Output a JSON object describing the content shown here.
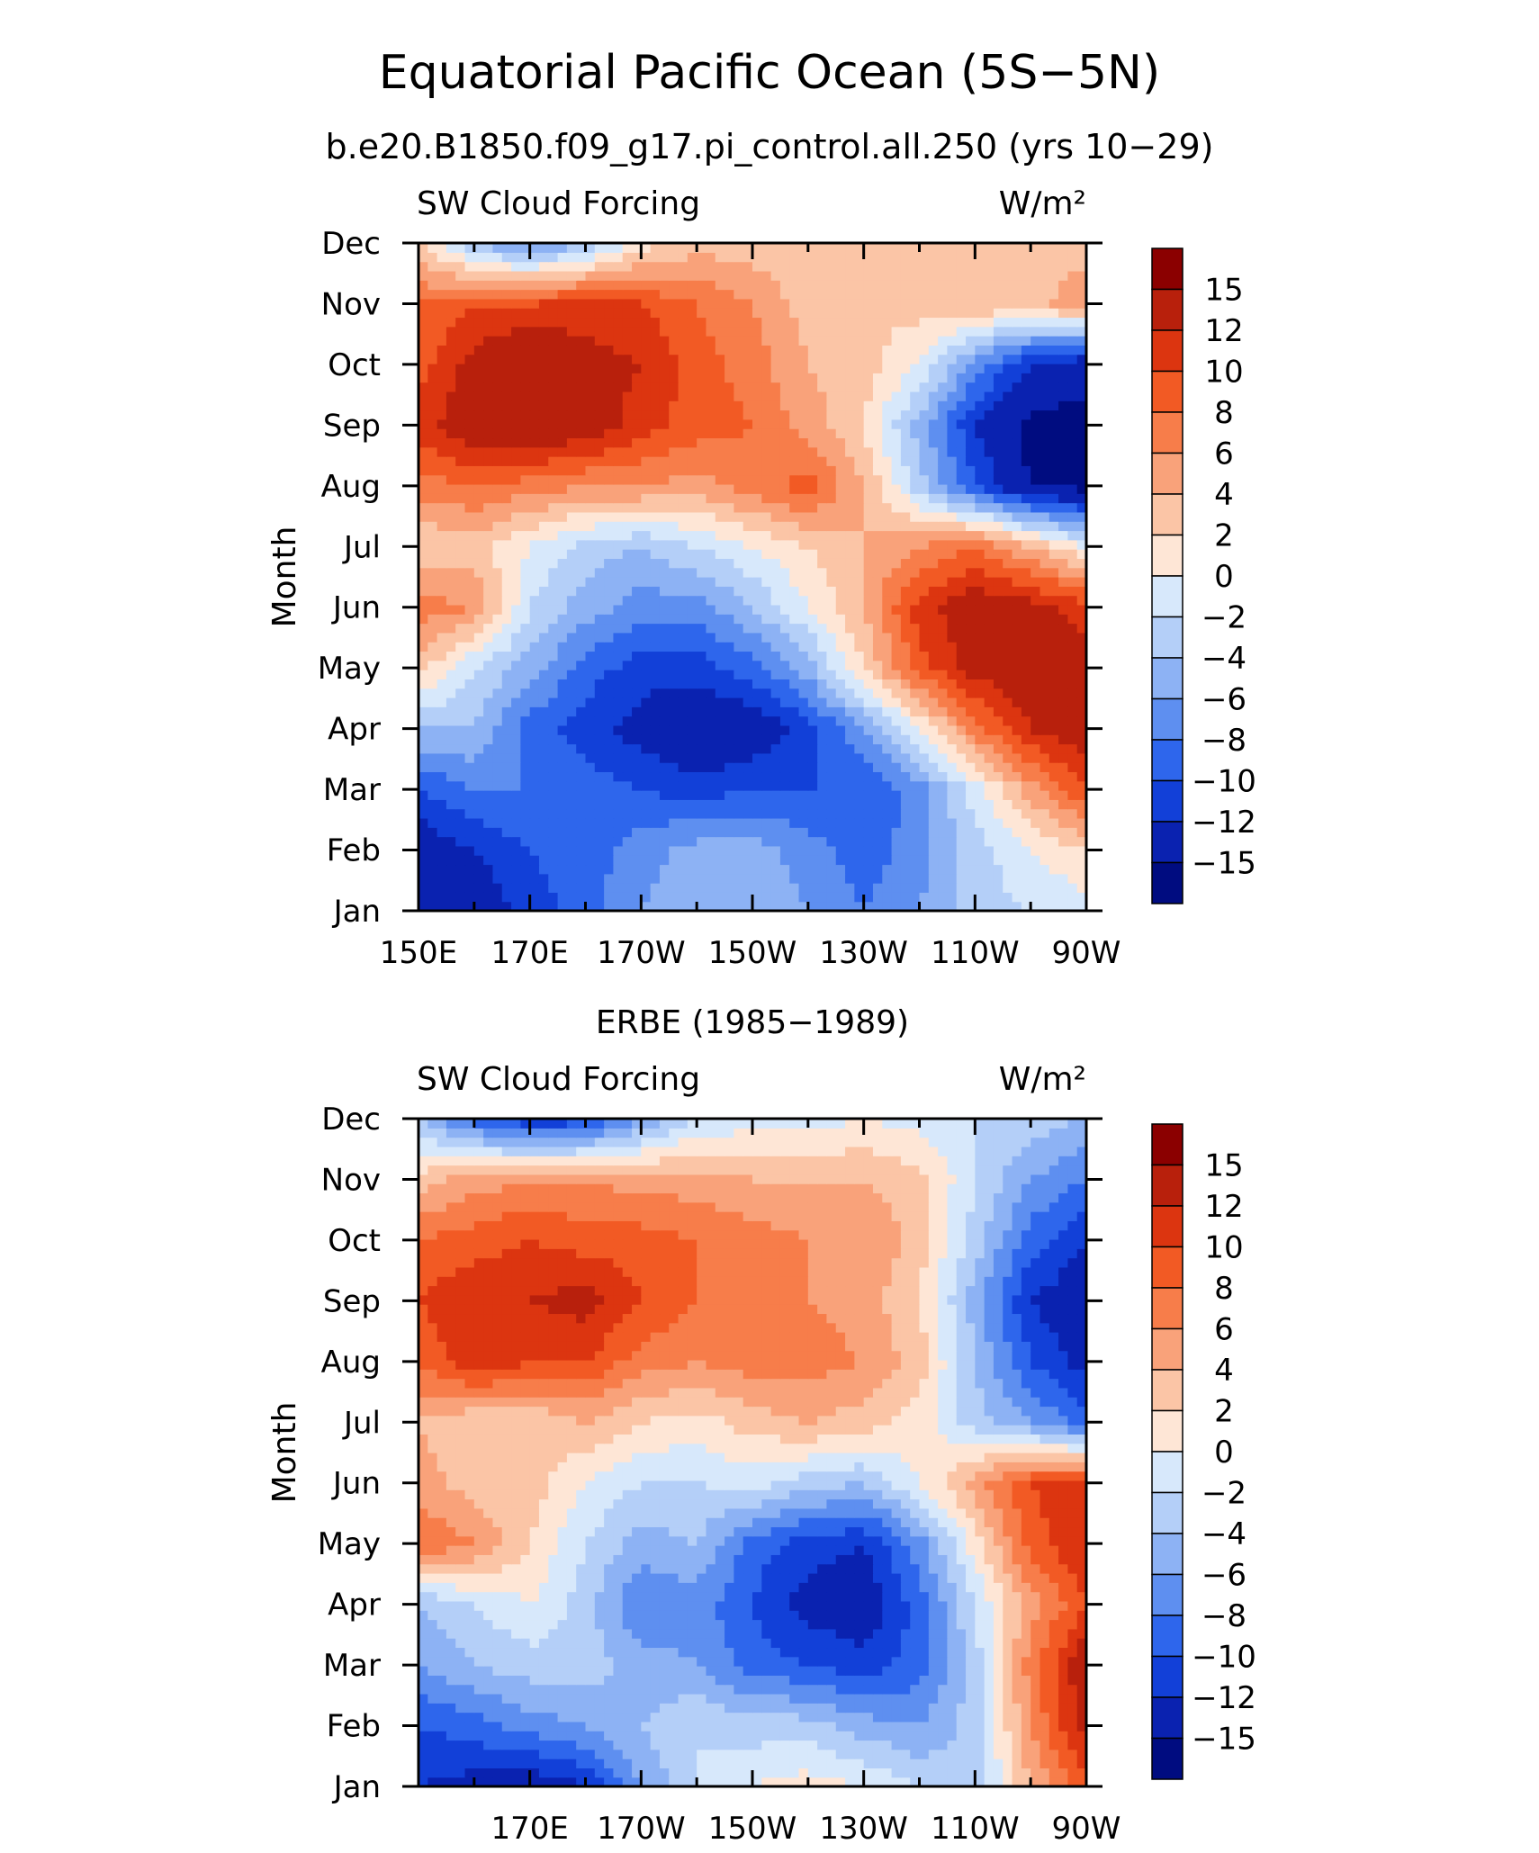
{
  "title": "Equatorial Pacific Ocean (5S−5N)",
  "subtitle": "b.e20.B1850.f09_g17.pi_control.all.250 (yrs 10−29)",
  "colorbar": {
    "labels": [
      "15",
      "12",
      "10",
      "8",
      "6",
      "4",
      "2",
      "0",
      "−2",
      "−4",
      "−6",
      "−8",
      "−10",
      "−12",
      "−15"
    ],
    "colors": [
      "#8b0000",
      "#b8200c",
      "#dc3510",
      "#f25a24",
      "#f77d4a",
      "#f9a27a",
      "#fbc5a6",
      "#fee6d6",
      "#d7e8fb",
      "#b4cff8",
      "#8db2f4",
      "#5e8ff0",
      "#2e66ec",
      "#1240d8",
      "#0a22b0",
      "#000c80"
    ]
  },
  "chart_data": [
    {
      "type": "heatmap",
      "left_label": "SW Cloud Forcing",
      "right_label": "W/m²",
      "ylabel": "Month",
      "xticklabels": [
        "150E",
        "170E",
        "170W",
        "150W",
        "130W",
        "110W",
        "90W"
      ],
      "yticklabels": [
        "Jan",
        "Feb",
        "Mar",
        "Apr",
        "May",
        "Jun",
        "Jul",
        "Aug",
        "Sep",
        "Oct",
        "Nov",
        "Dec"
      ],
      "x": [
        150,
        160,
        170,
        180,
        190,
        200,
        210,
        220,
        230,
        240,
        250,
        260,
        270
      ],
      "y": [
        "Jan",
        "Feb",
        "Mar",
        "Apr",
        "May",
        "Jun",
        "Jul",
        "Aug",
        "Sep",
        "Oct",
        "Nov",
        "Dec"
      ],
      "z": [
        [
          -15,
          -14,
          -11,
          -9,
          -6,
          -4,
          -4,
          -6,
          -8,
          -6,
          -3,
          -2,
          -1
        ],
        [
          -14,
          -12,
          -10,
          -9,
          -7,
          -5,
          -5,
          -7,
          -9,
          -7,
          -3,
          0,
          2
        ],
        [
          -10,
          -8,
          -8,
          -9,
          -10,
          -11,
          -10,
          -10,
          -10,
          -7,
          -1,
          5,
          10
        ],
        [
          -4,
          -4,
          -9,
          -11,
          -13,
          -15,
          -14,
          -11,
          -6,
          0,
          7,
          12,
          14
        ],
        [
          3,
          -2,
          -5,
          -9,
          -11,
          -11,
          -9,
          -5,
          2,
          9,
          13,
          14,
          13
        ],
        [
          7,
          6,
          -2,
          -5,
          -7,
          -7,
          -4,
          0,
          4,
          11,
          14,
          13,
          11
        ],
        [
          2,
          3,
          0,
          -3,
          -4,
          -2,
          0,
          2,
          4,
          6,
          8,
          4,
          0
        ],
        [
          7,
          8,
          7,
          6,
          6,
          5,
          7,
          9,
          4,
          -3,
          -10,
          -15,
          -16
        ],
        [
          11,
          14,
          15,
          14,
          11,
          9,
          8,
          5,
          2,
          -5,
          -12,
          -16,
          -16
        ],
        [
          9,
          13,
          15,
          13,
          12,
          9,
          7,
          4,
          3,
          0,
          -7,
          -12,
          -14
        ],
        [
          8,
          10,
          10,
          11,
          10,
          8,
          6,
          3,
          2,
          3,
          4,
          3,
          6
        ],
        [
          2,
          -4,
          -7,
          -4,
          1,
          3,
          3,
          2,
          2,
          3,
          3,
          2,
          3
        ]
      ]
    },
    {
      "type": "heatmap",
      "panel_title": "ERBE (1985−1989)",
      "left_label": "SW Cloud Forcing",
      "right_label": "W/m²",
      "ylabel": "Month",
      "xticklabels": [
        "170E",
        "170W",
        "150W",
        "130W",
        "110W",
        "90W"
      ],
      "yticklabels": [
        "Jan",
        "Feb",
        "Mar",
        "Apr",
        "May",
        "Jun",
        "Jul",
        "Aug",
        "Sep",
        "Oct",
        "Nov",
        "Dec"
      ],
      "x": [
        150,
        160,
        170,
        180,
        190,
        200,
        210,
        220,
        230,
        240,
        250,
        260,
        270
      ],
      "y": [
        "Jan",
        "Feb",
        "Mar",
        "Apr",
        "May",
        "Jun",
        "Jul",
        "Aug",
        "Sep",
        "Oct",
        "Nov",
        "Dec"
      ],
      "z": [
        [
          -12,
          -13,
          -14,
          -12,
          -6,
          -2,
          0,
          1,
          0,
          -2,
          -4,
          4,
          9
        ],
        [
          -10,
          -9,
          -7,
          -6,
          -4,
          -2,
          -3,
          -3,
          -5,
          -6,
          -3,
          6,
          13
        ],
        [
          -6,
          -4,
          -3,
          -3,
          -5,
          -6,
          -9,
          -10,
          -11,
          -9,
          -3,
          7,
          14
        ],
        [
          -4,
          -2,
          0,
          -3,
          -8,
          -7,
          -10,
          -13,
          -14,
          -9,
          -2,
          5,
          10
        ],
        [
          8,
          6,
          2,
          -2,
          -5,
          -4,
          -9,
          -11,
          -12,
          -7,
          1,
          9,
          12
        ],
        [
          5,
          3,
          3,
          0,
          -2,
          -2,
          -1,
          -3,
          -4,
          0,
          5,
          10,
          11
        ],
        [
          4,
          2,
          2,
          4,
          2,
          1,
          3,
          4,
          3,
          1,
          -3,
          -6,
          -9
        ],
        [
          8,
          12,
          10,
          10,
          7,
          6,
          7,
          7,
          6,
          3,
          -4,
          -10,
          -13
        ],
        [
          10,
          12,
          12,
          13,
          10,
          8,
          7,
          6,
          5,
          2,
          -5,
          -12,
          -14
        ],
        [
          8,
          9,
          10,
          9,
          9,
          8,
          7,
          6,
          6,
          3,
          -3,
          -9,
          -12
        ],
        [
          3,
          5,
          6,
          6,
          5,
          5,
          4,
          4,
          4,
          3,
          -2,
          -6,
          -8
        ],
        [
          -4,
          -9,
          -12,
          -11,
          -6,
          -2,
          -1,
          -1,
          0,
          -1,
          -2,
          -3,
          -4
        ]
      ]
    }
  ]
}
